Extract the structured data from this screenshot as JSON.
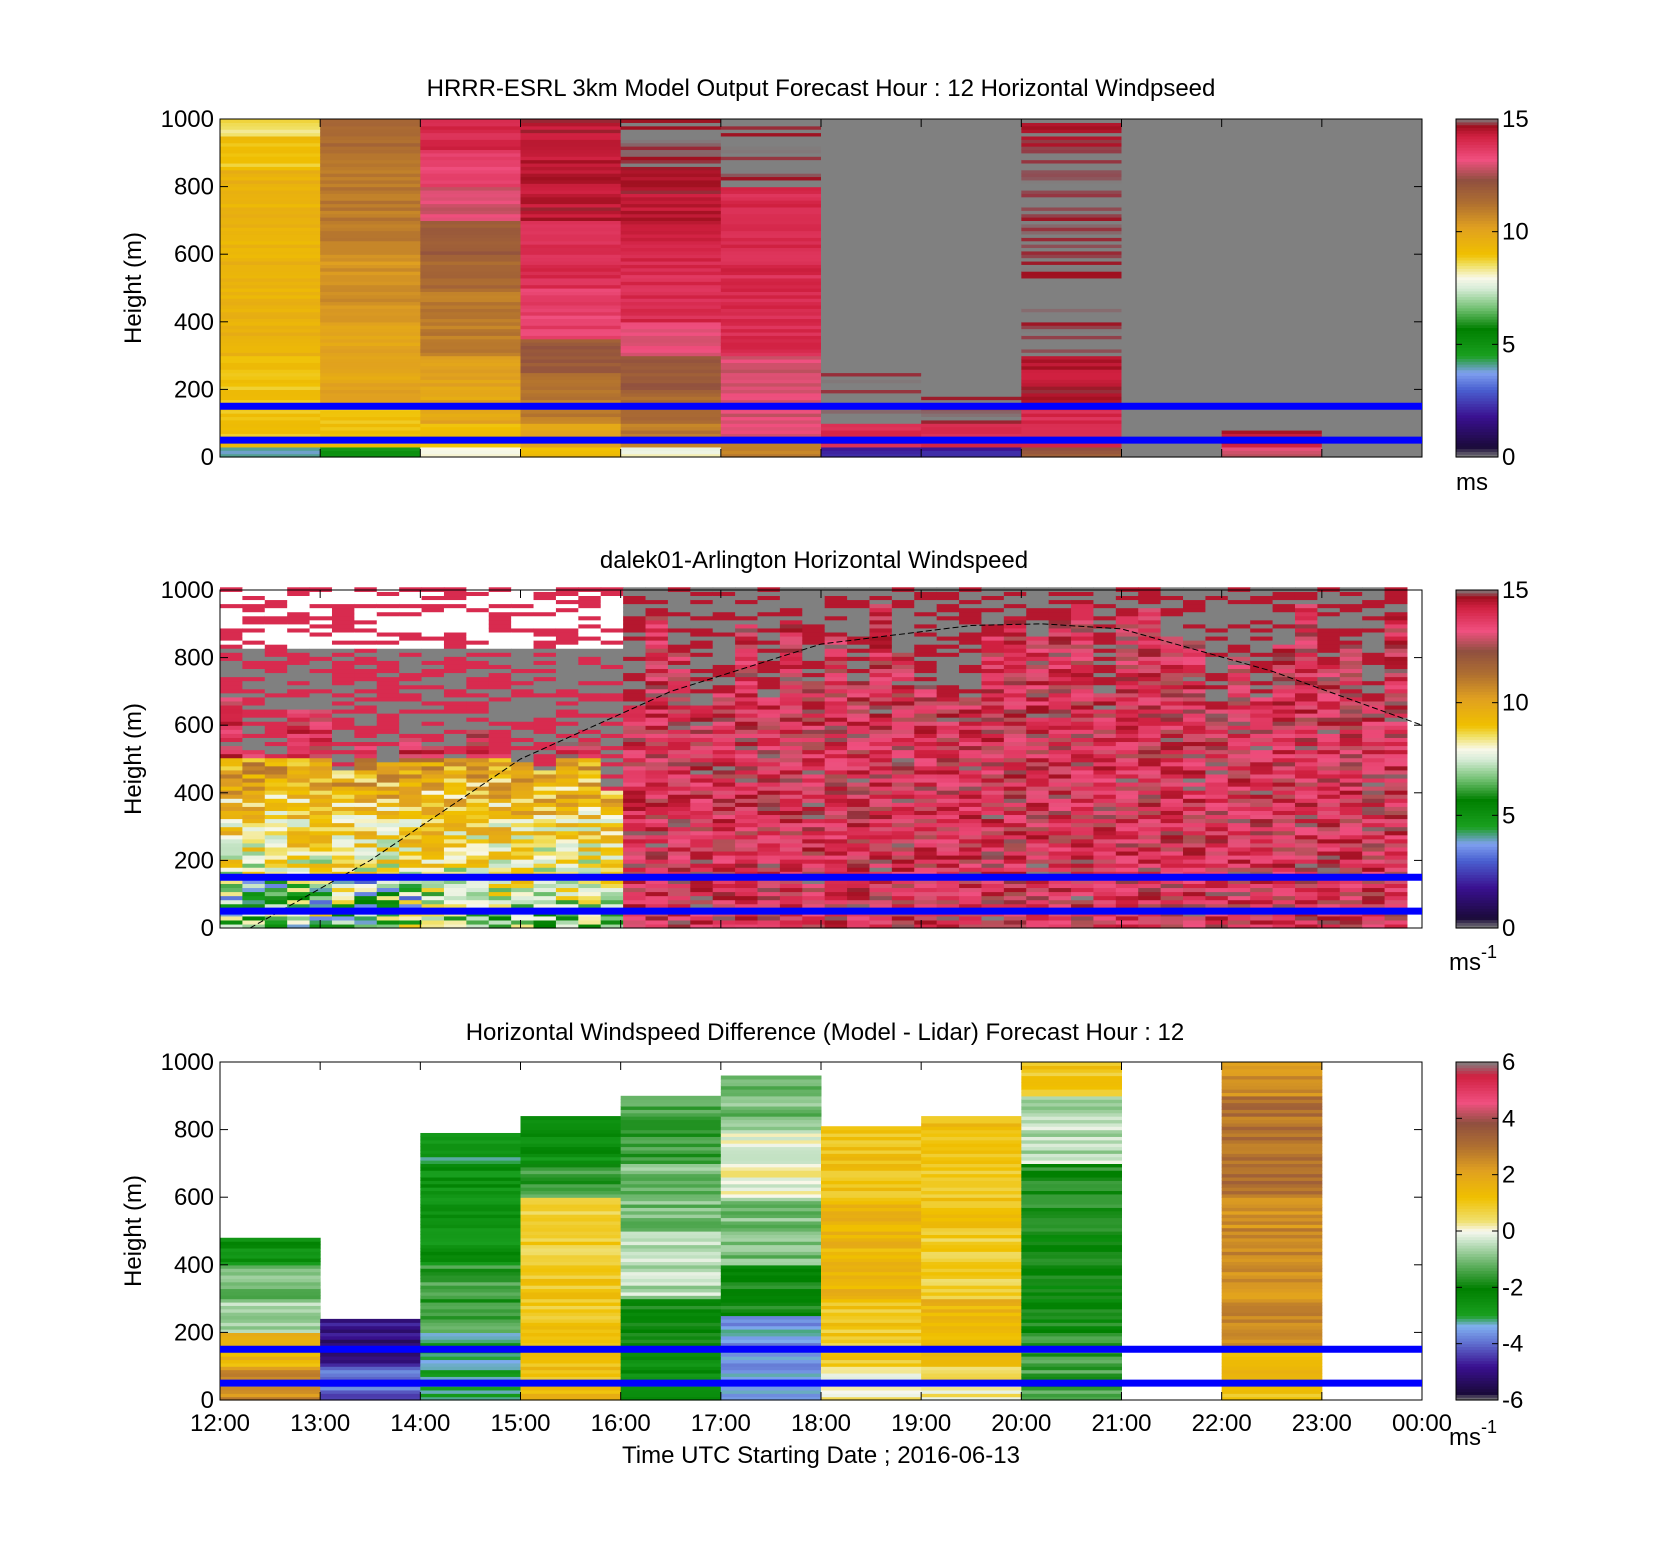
{
  "figure": {
    "xlabel": "Time UTC  Starting Date ; 2016-06-13",
    "x_tick_labels": [
      "12:00",
      "13:00",
      "14:00",
      "15:00",
      "16:00",
      "17:00",
      "18:00",
      "19:00",
      "20:00",
      "21:00",
      "22:00",
      "23:00",
      "00:00"
    ]
  },
  "chart_data": [
    {
      "type": "heatmap",
      "title": "HRRR-ESRL 3km Model Output   Forecast Hour : 12 Horizontal Windpseed",
      "ylabel": "Height (m)",
      "ylim": [
        0,
        1000
      ],
      "y_ticks": [
        "0",
        "200",
        "400",
        "600",
        "800",
        "1000"
      ],
      "x_hours": [
        12,
        24
      ],
      "colorbar": {
        "ticks": [
          "0",
          "5",
          "10",
          "15"
        ],
        "range": [
          0,
          15
        ],
        "unit": "ms"
      },
      "reference_lines_m": [
        50,
        150
      ],
      "columns": [
        {
          "time": "12:00",
          "values": [
            [
              0,
              4,
              6
            ],
            [
              30,
              9
            ],
            [
              100,
              9
            ],
            [
              300,
              9.5
            ],
            [
              500,
              9.5
            ],
            [
              700,
              9.5
            ],
            [
              850,
              9
            ],
            [
              950,
              8.5
            ]
          ]
        },
        {
          "time": "13:00",
          "values": [
            [
              0,
              5,
              7
            ],
            [
              30,
              9
            ],
            [
              150,
              10
            ],
            [
              400,
              10.5
            ],
            [
              600,
              11
            ],
            [
              900,
              11.5
            ]
          ]
        },
        {
          "time": "14:00",
          "values": [
            [
              0,
              8
            ],
            [
              30,
              9
            ],
            [
              100,
              10
            ],
            [
              300,
              11
            ],
            [
              500,
              11.5
            ],
            [
              600,
              12
            ],
            [
              700,
              13
            ],
            [
              800,
              13.5
            ],
            [
              900,
              14
            ]
          ]
        },
        {
          "time": "15:00",
          "values": [
            [
              0,
              9
            ],
            [
              30,
              10
            ],
            [
              100,
              11
            ],
            [
              250,
              12
            ],
            [
              350,
              13.5
            ],
            [
              500,
              14
            ],
            [
              700,
              14.5
            ]
          ]
        },
        {
          "time": "16:00",
          "values": [
            [
              0,
              8
            ],
            [
              30,
              11
            ],
            [
              100,
              11.5
            ],
            [
              200,
              12
            ],
            [
              300,
              13
            ],
            [
              400,
              14
            ],
            [
              600,
              14.2
            ],
            [
              700,
              14.5
            ],
            [
              850,
              15
            ]
          ]
        },
        {
          "time": "17:00",
          "values": [
            [
              0,
              11
            ],
            [
              50,
              13
            ],
            [
              300,
              14
            ],
            [
              800,
              15
            ]
          ]
        },
        {
          "time": "18:00",
          "values": [
            [
              0,
              2
            ],
            [
              30,
              14
            ],
            [
              100,
              15
            ],
            [
              200,
              15
            ],
            [
              260,
              null
            ]
          ]
        },
        {
          "time": "19:00",
          "values": [
            [
              0,
              2
            ],
            [
              30,
              14
            ],
            [
              100,
              15
            ],
            [
              200,
              null
            ]
          ]
        },
        {
          "time": "20:00",
          "values": [
            [
              0,
              12
            ],
            [
              30,
              14
            ],
            [
              150,
              14.5
            ],
            [
              300,
              15
            ],
            [
              900,
              14.8
            ]
          ]
        },
        {
          "time": "21:00",
          "values": [
            [
              0,
              null
            ]
          ]
        },
        {
          "time": "22:00",
          "values": [
            [
              0,
              13
            ],
            [
              30,
              14.5
            ],
            [
              80,
              null
            ]
          ]
        },
        {
          "time": "23:00",
          "values": [
            [
              0,
              null
            ]
          ]
        }
      ]
    },
    {
      "type": "heatmap",
      "title": "dalek01-Arlington  Horizontal Windspeed",
      "ylabel": "Height (m)",
      "ylim": [
        0,
        1000
      ],
      "y_ticks": [
        "0",
        "200",
        "400",
        "600",
        "800",
        "1000"
      ],
      "x_hours": [
        12,
        24
      ],
      "colorbar": {
        "ticks": [
          "0",
          "5",
          "10",
          "15"
        ],
        "range": [
          0,
          15
        ],
        "unit": "ms",
        "unit_exponent": "-1"
      },
      "reference_lines_m": [
        50,
        150
      ],
      "boundary_layer_curve": {
        "x_hours": [
          12.3,
          13.5,
          15,
          16.5,
          18,
          19.5,
          20.2,
          21,
          22.5,
          24
        ],
        "y_m": [
          0,
          200,
          500,
          700,
          840,
          895,
          900,
          885,
          760,
          600
        ]
      },
      "lidar_columns_approx": "25-minute profiles, ~8–10 m/s below 500 m before 16:00, ~12–15 m/s aloft after 16:00, gaps (no data) shown in gray"
    },
    {
      "type": "heatmap",
      "title": "Horizontal Windspeed Difference (Model - Lidar) Forecast Hour : 12",
      "ylabel": "Height (m)",
      "ylim": [
        0,
        1000
      ],
      "y_ticks": [
        "0",
        "200",
        "400",
        "600",
        "800",
        "1000"
      ],
      "x_hours": [
        12,
        24
      ],
      "colorbar": {
        "ticks": [
          "-6",
          "-4",
          "-2",
          "0",
          "2",
          "4",
          "6"
        ],
        "range": [
          -6,
          6
        ],
        "unit": "ms",
        "unit_exponent": "-1"
      },
      "reference_lines_m": [
        50,
        150
      ],
      "columns": [
        {
          "time": "12:00",
          "top": 480,
          "values": [
            [
              0,
              2.5
            ],
            [
              100,
              1.5
            ],
            [
              200,
              -0.5
            ],
            [
              300,
              -1
            ],
            [
              400,
              -2.5
            ]
          ]
        },
        {
          "time": "13:00",
          "top": 240,
          "values": [
            [
              0,
              -4
            ],
            [
              100,
              -5
            ],
            [
              240,
              -5.5
            ],
            [
              480,
              null
            ]
          ]
        },
        {
          "time": "14:00",
          "top": 790,
          "values": [
            [
              0,
              -3
            ],
            [
              200,
              -1.5
            ],
            [
              400,
              -2.5
            ],
            [
              700,
              -3
            ]
          ]
        },
        {
          "time": "15:00",
          "top": 835,
          "values": [
            [
              0,
              1.5
            ],
            [
              50,
              1.2
            ],
            [
              200,
              1
            ],
            [
              400,
              0.8
            ],
            [
              600,
              -1.5
            ],
            [
              700,
              -2.5
            ]
          ]
        },
        {
          "time": "16:00",
          "top": 895,
          "values": [
            [
              0,
              -2.5
            ],
            [
              150,
              -2
            ],
            [
              300,
              -0.5
            ],
            [
              500,
              -1
            ],
            [
              700,
              -1.5
            ]
          ]
        },
        {
          "time": "17:00",
          "top": 960,
          "values": [
            [
              0,
              -3.5
            ],
            [
              250,
              -2
            ],
            [
              400,
              -1
            ],
            [
              600,
              0
            ],
            [
              800,
              -1
            ]
          ]
        },
        {
          "time": "18:00",
          "top": 805,
          "values": [
            [
              0,
              0.2
            ],
            [
              100,
              1
            ],
            [
              300,
              1.5
            ],
            [
              600,
              1.2
            ]
          ]
        },
        {
          "time": "19:00",
          "top": 835,
          "values": [
            [
              0,
              0.3
            ],
            [
              100,
              1.5
            ],
            [
              300,
              0.8
            ],
            [
              500,
              1
            ],
            [
              700,
              1.2
            ]
          ]
        },
        {
          "time": "20:00",
          "top": 1000,
          "values": [
            [
              0,
              -1.5
            ],
            [
              200,
              -2
            ],
            [
              500,
              -1.8
            ],
            [
              700,
              -0.5
            ],
            [
              900,
              1
            ]
          ]
        },
        {
          "time": "21:00",
          "top": 0,
          "values": []
        },
        {
          "time": "22:00",
          "top": 1000,
          "values": [
            [
              0,
              1.2
            ],
            [
              150,
              2.5
            ],
            [
              600,
              3
            ],
            [
              900,
              2.5
            ]
          ]
        },
        {
          "time": "23:00",
          "top": 0,
          "values": []
        }
      ]
    }
  ]
}
